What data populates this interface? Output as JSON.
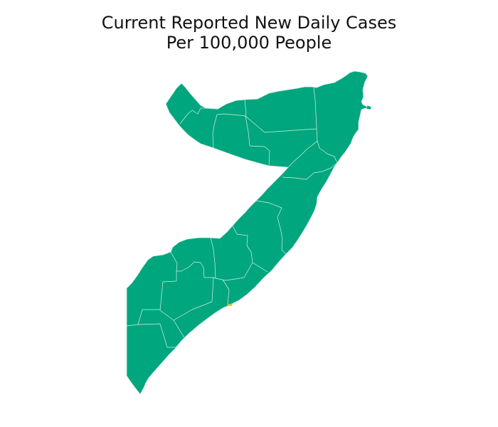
{
  "map": {
    "title_line1": "Current Reported New Daily Cases",
    "title_line2": "Per 100,000 People",
    "colors": {
      "region_fill": "#00a67e",
      "border": "#d9efe6",
      "highlight": "#e3c64a",
      "background": "#ffffff"
    }
  }
}
